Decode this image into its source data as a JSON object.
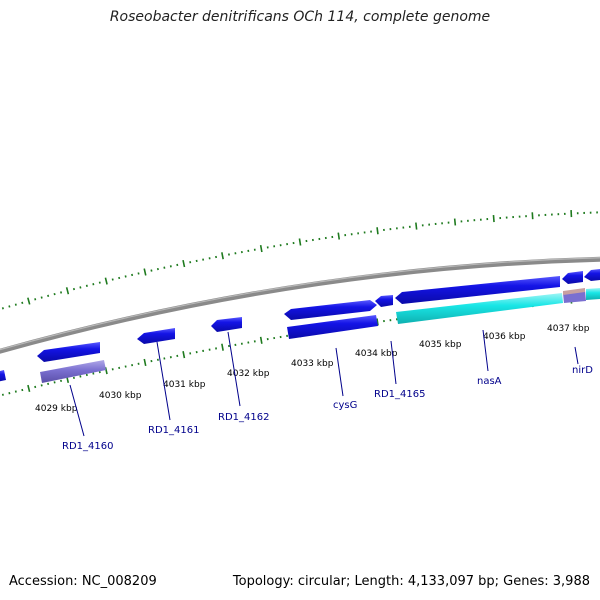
{
  "title": "Roseobacter denitrificans OCh 114, complete genome",
  "footer": {
    "accession": "Accession: NC_008209",
    "summary": "Topology: circular; Length: 4,133,097 bp; Genes: 3,988"
  },
  "colors": {
    "backbone": "#8a8a8a",
    "tick": "#1e7a1e",
    "gene_forward": "#1414e6",
    "gene_highlight": "#19e6e6",
    "gene_rna": "#7a6fd0",
    "label": "#00008b"
  },
  "ruler_labels": [
    "4029 kbp",
    "4030 kbp",
    "4031 kbp",
    "4032 kbp",
    "4033 kbp",
    "4034 kbp",
    "4035 kbp",
    "4036 kbp",
    "4037 kbp"
  ],
  "gene_labels": [
    "RD1_4160",
    "RD1_4161",
    "RD1_4162",
    "cysG",
    "RD1_4165",
    "nasA",
    "nirD"
  ]
}
